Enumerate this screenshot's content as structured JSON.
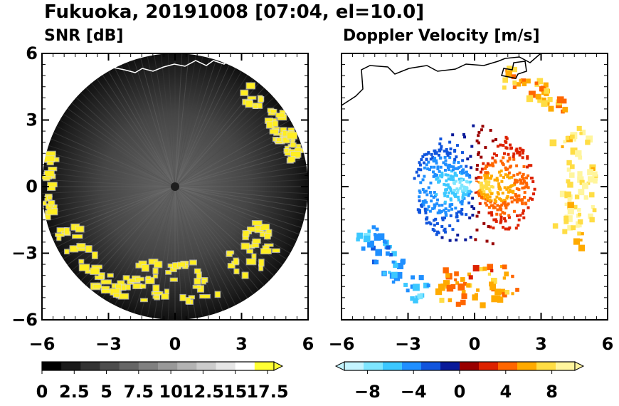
{
  "figure": {
    "title": "Fukuoka, 20191008 [07:04, el=10.0]"
  },
  "chart_data": [
    {
      "type": "heatmap",
      "title": "SNR [dB]",
      "xlim": [
        -6,
        6
      ],
      "ylim": [
        -6,
        6
      ],
      "x_ticks": [
        "−6",
        "−3",
        "0",
        "3",
        "6"
      ],
      "y_ticks": [
        "6",
        "3",
        "0",
        "−3",
        "−6"
      ],
      "grid": false,
      "colorbar": {
        "range": [
          0,
          18
        ],
        "tick_labels": [
          "0",
          "2.5",
          "5",
          "7.5",
          "10",
          "12.5",
          "15",
          "17.5"
        ],
        "tick_values": [
          0,
          2.5,
          5,
          7.5,
          10,
          12.5,
          15,
          17.5
        ],
        "extend": "max",
        "colors": [
          "#000000",
          "#1a1a1a",
          "#333333",
          "#4d4d4d",
          "#666666",
          "#808080",
          "#999999",
          "#b3b3b3",
          "#cccccc",
          "#e6e6e6",
          "#ffffff",
          "#ffff33"
        ]
      },
      "range_radius": 6,
      "high_echo_color": "#ffee22",
      "high_echo_regions": [
        {
          "label": "north",
          "az": [
            35,
            70
          ],
          "r": [
            5.0,
            5.7
          ]
        },
        {
          "label": "east",
          "az": [
            55,
            80
          ],
          "r": [
            5.3,
            5.9
          ]
        },
        {
          "label": "west",
          "az": [
            255,
            285
          ],
          "r": [
            5.5,
            6.0
          ]
        },
        {
          "label": "southwest",
          "az": [
            205,
            250
          ],
          "r": [
            4.6,
            5.8
          ]
        },
        {
          "label": "south",
          "az": [
            155,
            205
          ],
          "r": [
            3.5,
            5.4
          ]
        },
        {
          "label": "southeast",
          "az": [
            110,
            145
          ],
          "r": [
            3.8,
            5.4
          ]
        }
      ]
    },
    {
      "type": "heatmap",
      "title": "Doppler Velocity [m/s]",
      "xlim": [
        -6,
        6
      ],
      "ylim": [
        -6,
        6
      ],
      "x_ticks": [
        "−6",
        "−3",
        "0",
        "3",
        "6"
      ],
      "y_ticks": [],
      "grid": false,
      "colorbar": {
        "range": [
          -10,
          10
        ],
        "tick_labels": [
          "−8",
          "−4",
          "0",
          "4",
          "8"
        ],
        "tick_values": [
          -8,
          -4,
          0,
          4,
          8
        ],
        "extend": "both",
        "colors": [
          "#c4f4ff",
          "#7ee6ff",
          "#3cc8ff",
          "#1f8fff",
          "#1155dd",
          "#0a1a99",
          "#990000",
          "#dd2200",
          "#ff6600",
          "#ffaa00",
          "#ffdd44",
          "#fff59d"
        ]
      },
      "velocity_pattern": "negative (blue) west of radar, positive (red/yellow) east of radar",
      "echo_regions": [
        {
          "label": "central",
          "az": [
            210,
            330
          ],
          "r": [
            0.1,
            2.6
          ],
          "v": -4
        },
        {
          "label": "central-east",
          "az": [
            30,
            150
          ],
          "r": [
            0.1,
            2.6
          ],
          "v": 4
        },
        {
          "label": "southwest arc",
          "az": [
            205,
            250
          ],
          "r": [
            4.6,
            5.8
          ],
          "v": -5
        },
        {
          "label": "south arc",
          "az": [
            155,
            200
          ],
          "r": [
            3.6,
            5.4
          ],
          "v": 5
        },
        {
          "label": "east arc",
          "az": [
            60,
            120
          ],
          "r": [
            4.0,
            5.6
          ],
          "v": 8
        },
        {
          "label": "north blobs",
          "az": [
            15,
            50
          ],
          "r": [
            4.6,
            5.6
          ],
          "v": 6
        }
      ]
    }
  ]
}
